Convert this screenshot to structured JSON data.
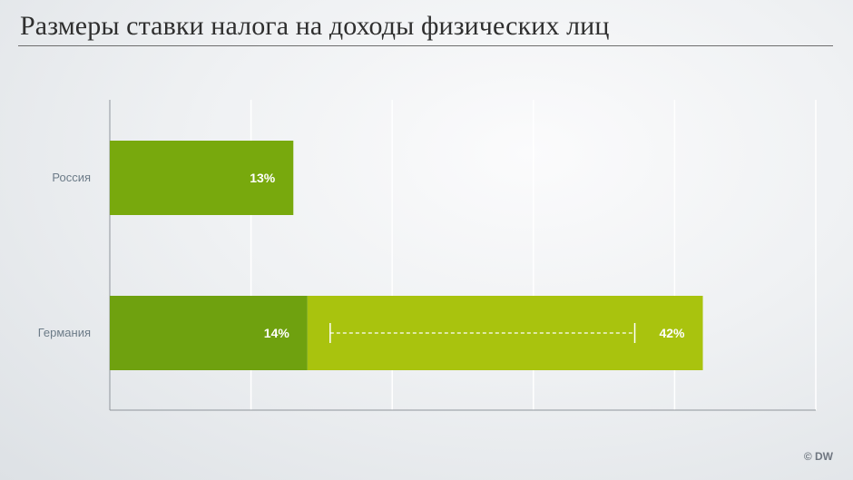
{
  "title": "Размеры ставки налога на доходы физических лиц",
  "credit": "© DW",
  "colors": {
    "dark_green": "#6fa10f",
    "mid_green": "#78a90d",
    "light_green": "#a9c30e",
    "label_text": "#6c7b88",
    "value_text": "#ffffff"
  },
  "chart_data": {
    "type": "bar",
    "orientation": "horizontal",
    "xlim": [
      0,
      50
    ],
    "grid": true,
    "categories": [
      "Россия",
      "Германия"
    ],
    "bars": [
      {
        "category": "Россия",
        "segments": [
          {
            "label": "13%",
            "start": 0,
            "end": 13,
            "color": "#78a90d"
          }
        ]
      },
      {
        "category": "Германия",
        "segments": [
          {
            "label": "14%",
            "start": 0,
            "end": 14,
            "color": "#6fa10f"
          },
          {
            "label": "42%",
            "start": 14,
            "end": 42,
            "color": "#a9c30e",
            "range_marker": true
          }
        ]
      }
    ]
  }
}
